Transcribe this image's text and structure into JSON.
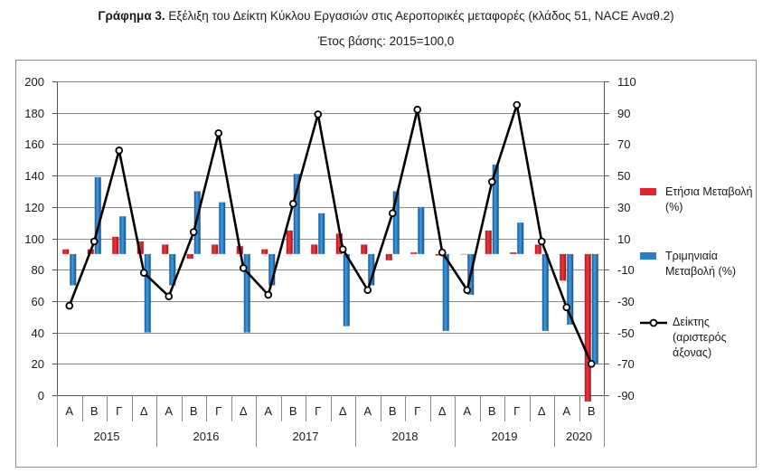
{
  "title_prefix": "Γράφημα 3.",
  "title_text": "Εξέλιξη του Δείκτη Κύκλου Εργασιών στις Αεροπορικές μεταφορές (κλάδος 51, NACE Αναθ.2)",
  "subtitle": "Έτος βάσης: 2015=100,0",
  "chart_data": {
    "type": "bar",
    "quarters": [
      "Α",
      "Β",
      "Γ",
      "Δ",
      "Α",
      "Β",
      "Γ",
      "Δ",
      "Α",
      "Β",
      "Γ",
      "Δ",
      "Α",
      "Β",
      "Γ",
      "Δ",
      "Α",
      "Β",
      "Γ",
      "Δ",
      "Α",
      "Β"
    ],
    "years": [
      {
        "label": "2015",
        "count": 4
      },
      {
        "label": "2016",
        "count": 4
      },
      {
        "label": "2017",
        "count": 4
      },
      {
        "label": "2018",
        "count": 4
      },
      {
        "label": "2019",
        "count": 4
      },
      {
        "label": "2020",
        "count": 2
      }
    ],
    "left_axis": {
      "min": 0,
      "max": 200,
      "ticks": [
        "0",
        "20",
        "40",
        "60",
        "80",
        "100",
        "120",
        "140",
        "160",
        "180",
        "200"
      ]
    },
    "right_axis": {
      "min": -90,
      "max": 110,
      "ticks": [
        "-90",
        "-70",
        "-50",
        "-30",
        "-10",
        "10",
        "30",
        "50",
        "70",
        "90",
        "110"
      ]
    },
    "series": [
      {
        "name": "Ετήσια Μεταβολή (%)",
        "axis": "right",
        "color": "#e8202a",
        "values": [
          3,
          3,
          11,
          8,
          6,
          -3,
          6,
          5,
          3,
          15,
          6,
          13,
          6,
          -4,
          1,
          -1,
          0,
          15,
          1,
          6,
          -17,
          -94
        ]
      },
      {
        "name": "Τριμηνιαία Μεταβολή (%)",
        "axis": "right",
        "color": "#2a7fc9",
        "values": [
          -20,
          49,
          24,
          -50,
          -20,
          40,
          33,
          -50,
          -20,
          51,
          26,
          -46,
          -20,
          40,
          30,
          -49,
          -26,
          57,
          20,
          -49,
          -45,
          -70
        ]
      },
      {
        "name": "Δείκτης (αριστερός άξονας)",
        "axis": "left",
        "color": "#000000",
        "values": [
          57,
          98,
          156,
          78,
          63,
          104,
          167,
          81,
          64,
          122,
          179,
          93,
          67,
          116,
          182,
          91,
          67,
          136,
          185,
          98,
          56,
          20
        ]
      }
    ],
    "legend_position": "right",
    "grid": true
  }
}
